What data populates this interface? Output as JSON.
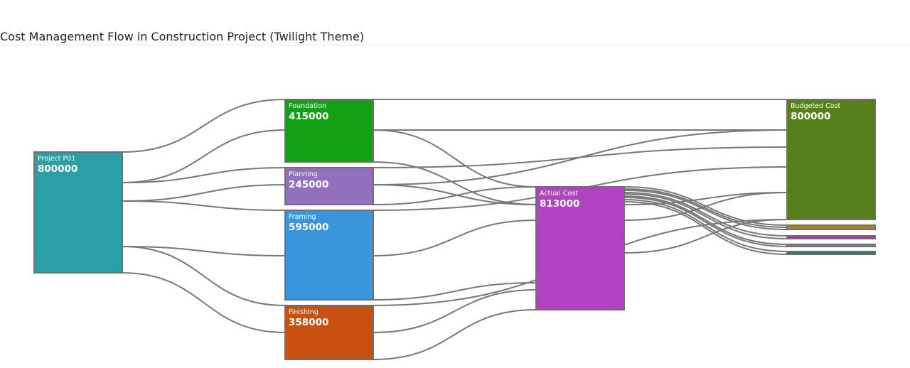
{
  "chart_data": {
    "type": "sankey",
    "title": "Cost Management Flow in Construction Project (Twilight Theme)",
    "nodes": [
      {
        "id": "project",
        "label": "Project P01",
        "value": 800000,
        "color": "#2a9fa5"
      },
      {
        "id": "foundation",
        "label": "Foundation",
        "value": 415000,
        "color": "#14a014"
      },
      {
        "id": "planning",
        "label": "Planning",
        "value": 245000,
        "color": "#9370be"
      },
      {
        "id": "framing",
        "label": "Framing",
        "value": 595000,
        "color": "#3a96dc"
      },
      {
        "id": "finishing",
        "label": "Finishing",
        "value": 358000,
        "color": "#c85010"
      },
      {
        "id": "actual",
        "label": "Actual Cost",
        "value": 813000,
        "color": "#b044c0"
      },
      {
        "id": "budgeted",
        "label": "Budgeted Cost",
        "value": 800000,
        "color": "#56801c"
      },
      {
        "id": "variance1",
        "label": "",
        "value": "",
        "color": "#a88418"
      },
      {
        "id": "variance2",
        "label": "",
        "value": "",
        "color": "#c020b0"
      },
      {
        "id": "variance3",
        "label": "",
        "value": "",
        "color": "#6a8a8a"
      },
      {
        "id": "variance4",
        "label": "",
        "value": "",
        "color": "#1a7a7a"
      }
    ]
  }
}
